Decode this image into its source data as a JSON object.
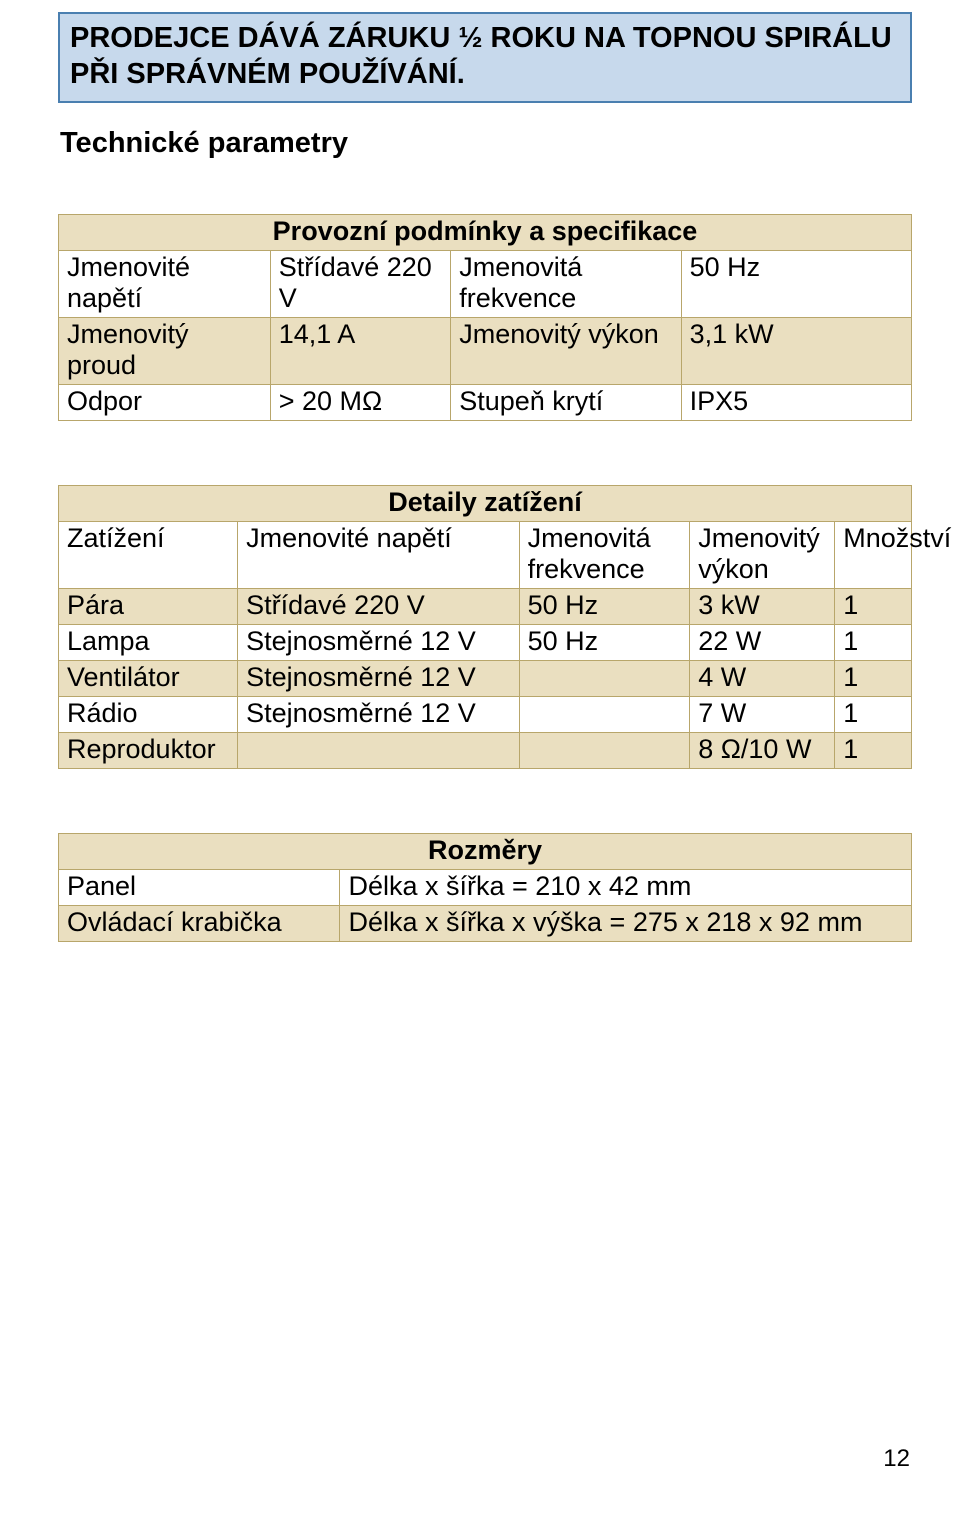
{
  "warranty_box": {
    "text": "PRODEJCE DÁVÁ ZÁRUKU ½ ROKU  NA TOPNOU SPIRÁLU PŘI SPRÁVNÉM POUŽÍVÁNÍ.",
    "bg_color": "#c7d9ec",
    "border_color": "#4a7fb0"
  },
  "section_heading": "Technické parametry",
  "conditions_table": {
    "title": "Provozní podmínky a specifikace",
    "rows": [
      {
        "a": "Jmenovité napětí",
        "b": "Střídavé 220 V",
        "c": "Jmenovitá frekvence",
        "d": "50 Hz"
      },
      {
        "a": "Jmenovitý proud",
        "b": "14,1 A",
        "c": "Jmenovitý výkon",
        "d": "3,1 kW"
      },
      {
        "a": "Odpor",
        "b": "> 20 MΩ",
        "c": "Stupeň krytí",
        "d": "IPX5"
      }
    ]
  },
  "details_table": {
    "title": "Detaily zatížení",
    "header": {
      "a": "Zatížení",
      "b_top": "Jmenovité napětí",
      "c_top": "Jmenovitá",
      "c_bot": "frekvence",
      "d_top": "Jmenovitý",
      "d_bot": "výkon",
      "e": "Množství"
    },
    "rows": [
      {
        "a": "Pára",
        "b": "Střídavé 220 V",
        "c": "50 Hz",
        "d": "3 kW",
        "e": "1"
      },
      {
        "a": "Lampa",
        "b": "Stejnosměrné 12 V",
        "c": "50 Hz",
        "d": "22 W",
        "e": "1"
      },
      {
        "a": "Ventilátor",
        "b": "Stejnosměrné 12 V",
        "c": "",
        "d": "4 W",
        "e": "1"
      },
      {
        "a": "Rádio",
        "b": "Stejnosměrné 12 V",
        "c": "",
        "d": "7 W",
        "e": "1"
      },
      {
        "a": "Reproduktor",
        "b": "",
        "c": "",
        "d": "8 Ω/10 W",
        "e": "1"
      }
    ]
  },
  "dims_table": {
    "title": "Rozměry",
    "rows": [
      {
        "a": "Panel",
        "b": "Délka x šířka = 210 x 42 mm"
      },
      {
        "a": "Ovládací krabička",
        "b": "Délka x šířka x výška = 275 x 218 x 92 mm"
      }
    ]
  },
  "page_number": "12",
  "table_colors": {
    "header_bg": "#eadfc0",
    "alt_bg": "#eadfc0",
    "border": "#b8a66b"
  }
}
